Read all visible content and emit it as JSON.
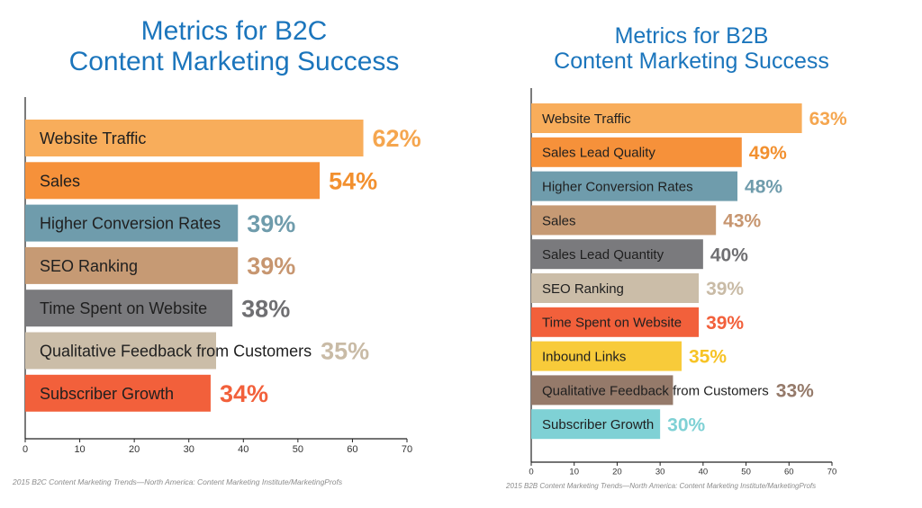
{
  "chart_data": [
    {
      "type": "bar",
      "orientation": "horizontal",
      "title_line1": "Metrics for B2C",
      "title_line2": "Content Marketing Success",
      "categories": [
        "Website Traffic",
        "Sales",
        "Higher Conversion Rates",
        "SEO Ranking",
        "Time Spent on Website",
        "Qualitative Feedback from Customers",
        "Subscriber Growth"
      ],
      "values": [
        62,
        54,
        39,
        39,
        38,
        35,
        34
      ],
      "value_labels": [
        "62%",
        "54%",
        "39%",
        "39%",
        "38%",
        "35%",
        "34%"
      ],
      "colors": [
        "#f8ad5b",
        "#f6913a",
        "#6f9cac",
        "#c69a74",
        "#7a7a7d",
        "#cbbda8",
        "#f2603b"
      ],
      "label_colors": [
        "#f5a64f",
        "#f2902f",
        "#6f9cac",
        "#c79670",
        "#6f6f72",
        "#c9bba6",
        "#f2603b"
      ],
      "xlim": [
        0,
        70
      ],
      "xticks": [
        "0",
        "10",
        "20",
        "30",
        "40",
        "50",
        "60",
        "70"
      ],
      "source": "2015 B2C Content Marketing Trends—North America: Content Marketing Institute/MarketingProfs"
    },
    {
      "type": "bar",
      "orientation": "horizontal",
      "title_line1": "Metrics for B2B",
      "title_line2": "Content Marketing Success",
      "categories": [
        "Website Traffic",
        "Sales Lead Quality",
        "Higher Conversion Rates",
        "Sales",
        "Sales Lead Quantity",
        "SEO Ranking",
        "Time Spent on Website",
        "Inbound Links",
        "Qualitative Feedback from Customers",
        "Subscriber Growth"
      ],
      "values": [
        63,
        49,
        48,
        43,
        40,
        39,
        39,
        35,
        33,
        30
      ],
      "value_labels": [
        "63%",
        "49%",
        "48%",
        "43%",
        "40%",
        "39%",
        "39%",
        "35%",
        "33%",
        "30%"
      ],
      "colors": [
        "#f8ad5b",
        "#f6913a",
        "#6f9cac",
        "#c69a74",
        "#7a7a7d",
        "#cbbda8",
        "#f2603b",
        "#f8cb3a",
        "#957a6a",
        "#7fd1d5"
      ],
      "label_colors": [
        "#f5a64f",
        "#f2902f",
        "#6f9cac",
        "#c79670",
        "#6f6f72",
        "#c9bba6",
        "#f2603b",
        "#f7c325",
        "#957a6a",
        "#7fd1d5"
      ],
      "xlim": [
        0,
        70
      ],
      "xticks": [
        "0",
        "10",
        "20",
        "30",
        "40",
        "50",
        "60",
        "70"
      ],
      "source": "2015 B2B Content Marketing Trends—North America: Content Marketing Institute/MarketingProfs"
    }
  ]
}
